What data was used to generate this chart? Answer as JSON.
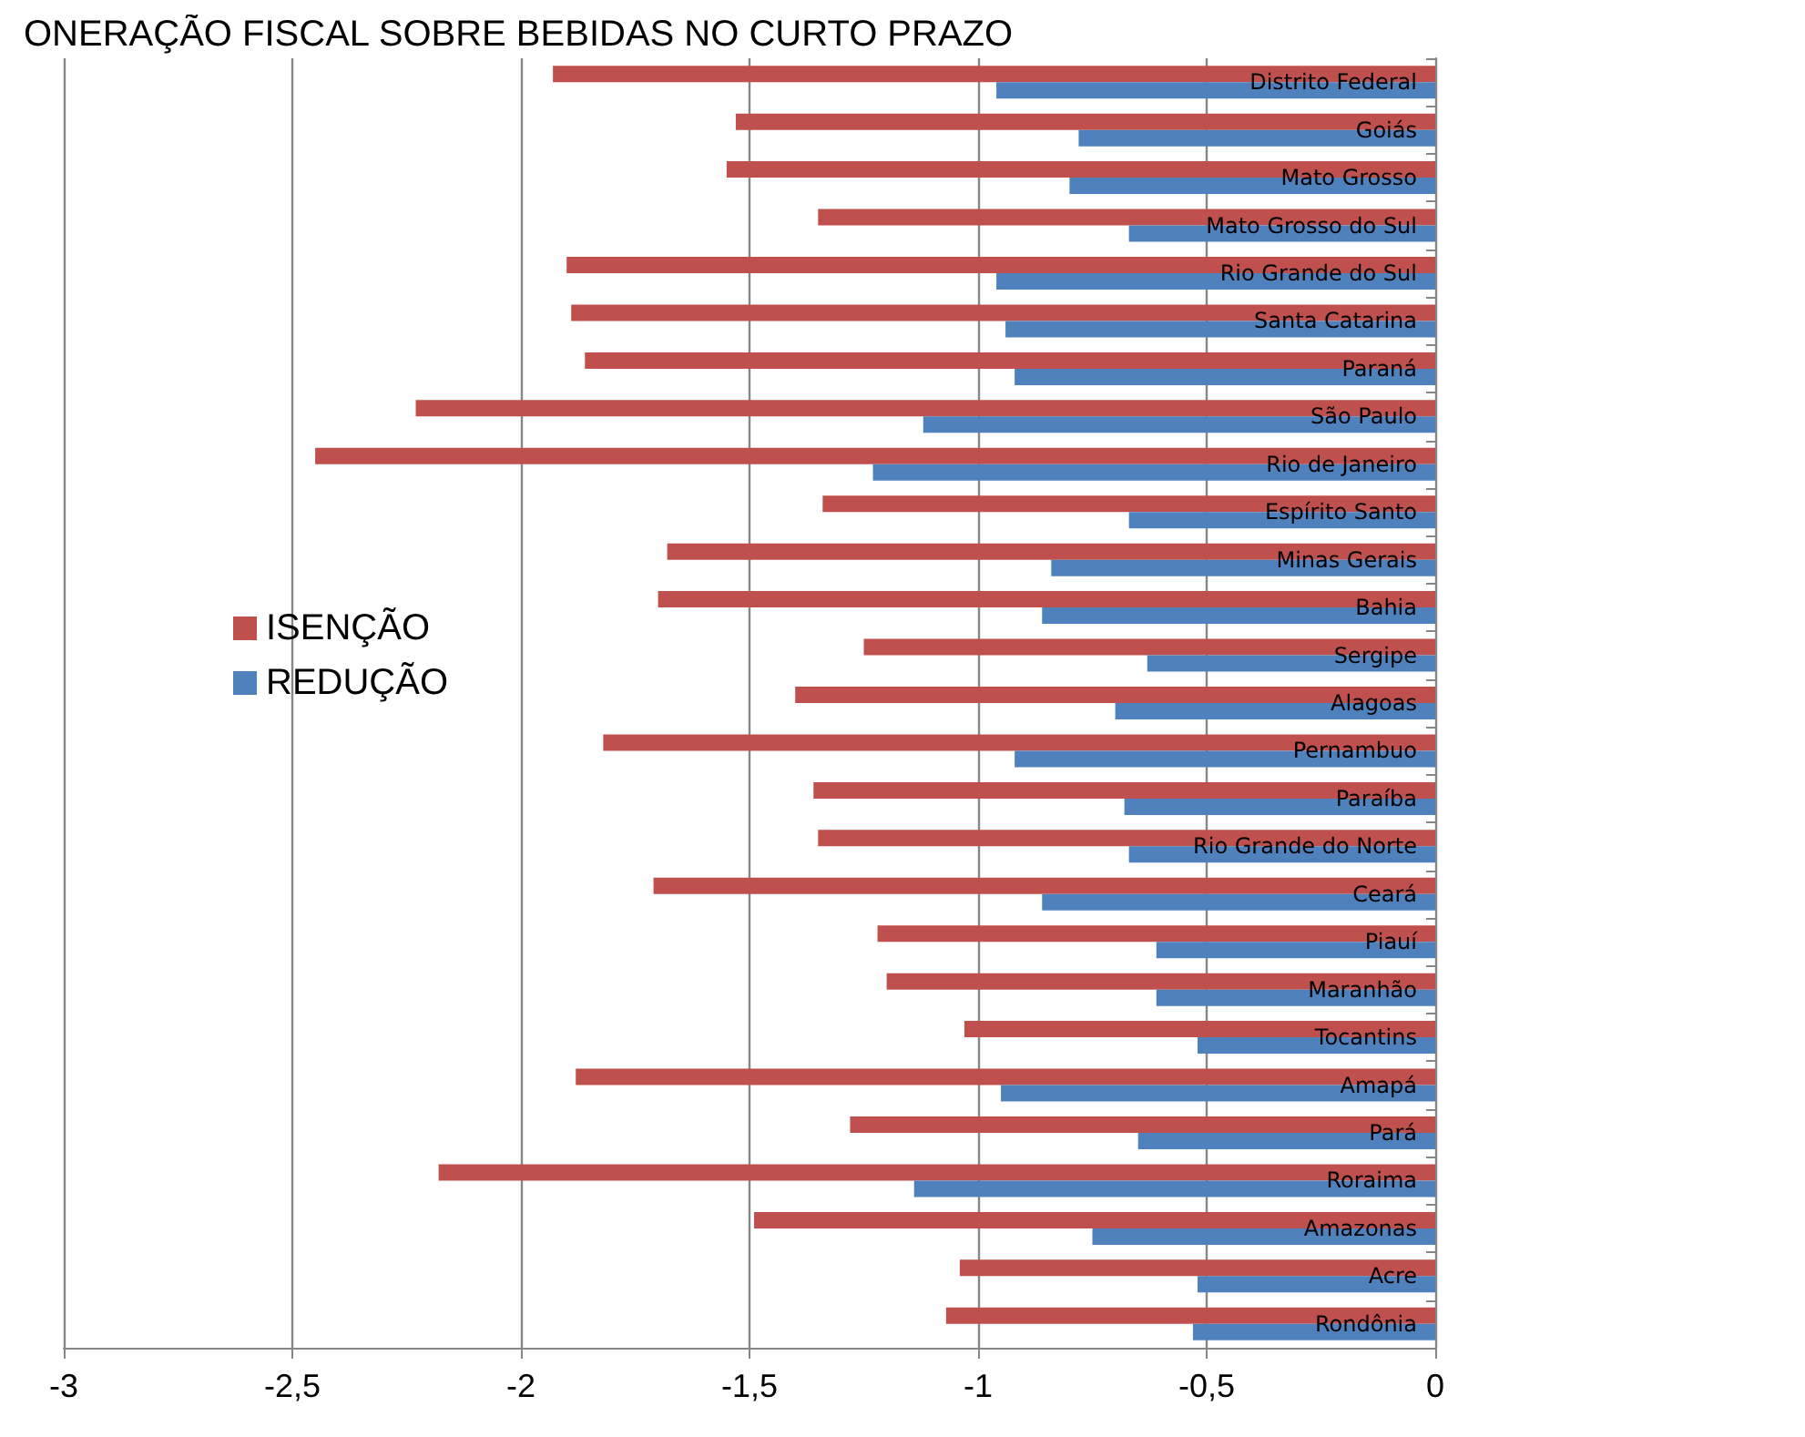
{
  "chart_data": {
    "type": "bar",
    "orientation": "horizontal",
    "title": "ONERAÇÃO FISCAL SOBRE BEBIDAS NO CURTO PRAZO",
    "categories": [
      "Distrito Federal",
      "Goiás",
      "Mato Grosso",
      "Mato Grosso do Sul",
      "Rio Grande do Sul",
      "Santa Catarina",
      "Paraná",
      "São Paulo",
      "Rio de Janeiro",
      "Espírito Santo",
      "Minas Gerais",
      "Bahia",
      "Sergipe",
      "Alagoas",
      "Pernambuo",
      "Paraíba",
      "Rio Grande do Norte",
      "Ceará",
      "Piauí",
      "Maranhão",
      "Tocantins",
      "Amapá",
      "Pará",
      "Roraima",
      "Amazonas",
      "Acre",
      "Rondônia"
    ],
    "series": [
      {
        "name": "ISENÇÃO",
        "color": "#c0504d",
        "values": [
          -1.93,
          -1.53,
          -1.55,
          -1.35,
          -1.9,
          -1.89,
          -1.86,
          -2.23,
          -2.45,
          -1.34,
          -1.68,
          -1.7,
          -1.25,
          -1.4,
          -1.82,
          -1.36,
          -1.35,
          -1.71,
          -1.22,
          -1.2,
          -1.03,
          -1.88,
          -1.28,
          -2.18,
          -1.49,
          -1.04,
          -1.07
        ]
      },
      {
        "name": "REDUÇÃO",
        "color": "#4f81bd",
        "values": [
          -0.96,
          -0.78,
          -0.8,
          -0.67,
          -0.96,
          -0.94,
          -0.92,
          -1.12,
          -1.23,
          -0.67,
          -0.84,
          -0.86,
          -0.63,
          -0.7,
          -0.92,
          -0.68,
          -0.67,
          -0.86,
          -0.61,
          -0.61,
          -0.52,
          -0.95,
          -0.65,
          -1.14,
          -0.75,
          -0.52,
          -0.53
        ]
      }
    ],
    "xlim": [
      -3,
      0
    ],
    "xticks": [
      -3,
      {
        "value": -2.5,
        "label": "-2,5"
      },
      -2,
      {
        "value": -1.5,
        "label": "-1,5"
      },
      -1,
      {
        "value": -0.5,
        "label": "-0,5"
      },
      0
    ],
    "grid": "x",
    "legend": "left"
  }
}
